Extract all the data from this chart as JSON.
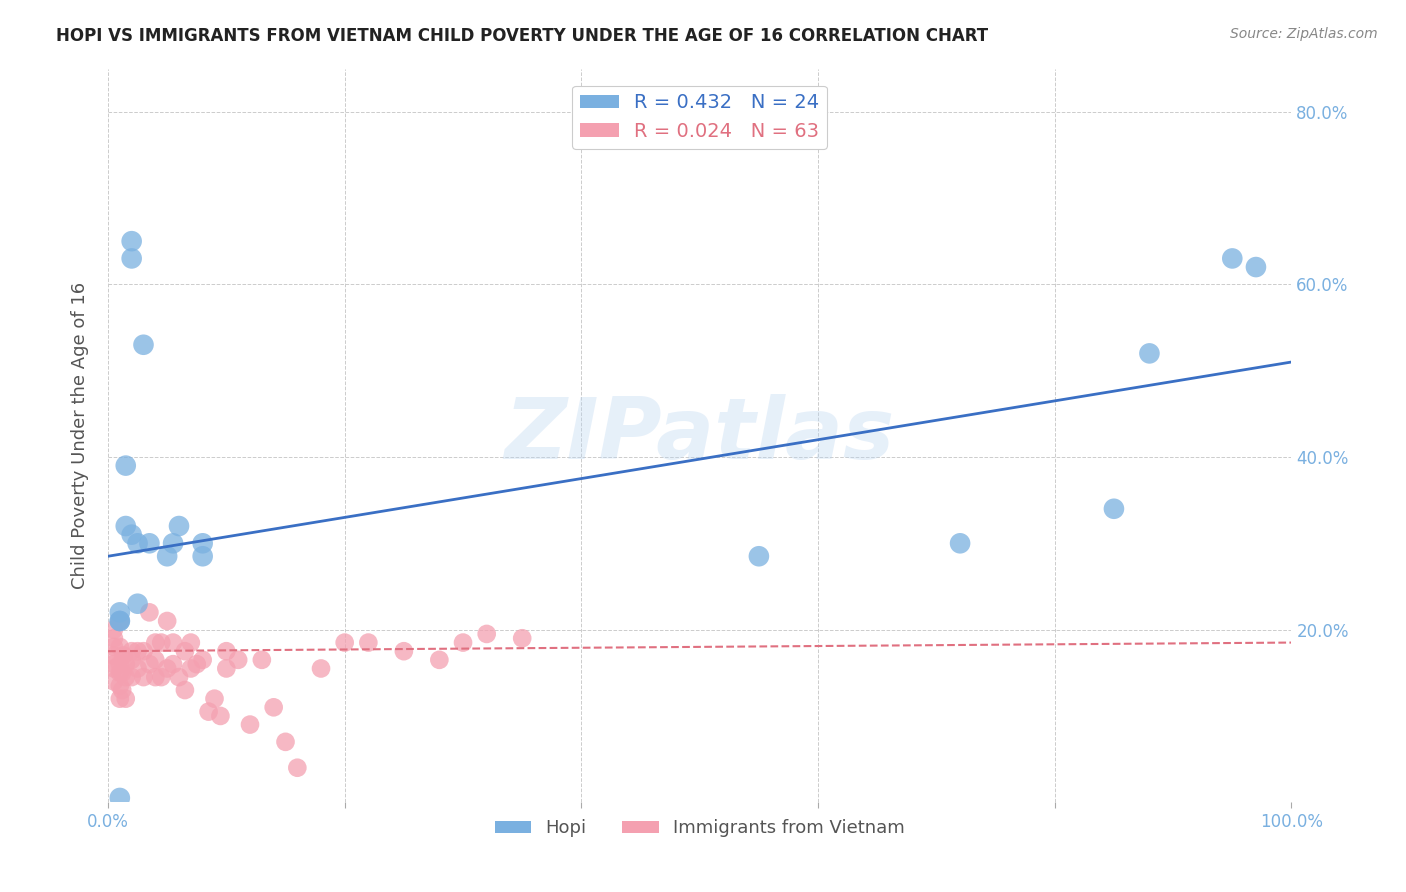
{
  "title": "HOPI VS IMMIGRANTS FROM VIETNAM CHILD POVERTY UNDER THE AGE OF 16 CORRELATION CHART",
  "source": "Source: ZipAtlas.com",
  "ylabel": "Child Poverty Under the Age of 16",
  "xlabel": "",
  "xlim": [
    0.0,
    1.0
  ],
  "ylim": [
    0.0,
    0.85
  ],
  "x_ticks": [
    0.0,
    0.2,
    0.4,
    0.6,
    0.8,
    1.0
  ],
  "x_tick_labels": [
    "0.0%",
    "",
    "",
    "",
    "",
    "100.0%"
  ],
  "y_ticks": [
    0.0,
    0.2,
    0.4,
    0.6,
    0.8
  ],
  "y_tick_labels": [
    "",
    "20.0%",
    "40.0%",
    "60.0%",
    "80.0%"
  ],
  "hopi_color": "#7ab0e0",
  "vietnam_color": "#f4a0b0",
  "hopi_line_color": "#3a6fc4",
  "vietnam_line_color": "#e07080",
  "legend_hopi_R": "R = 0.432",
  "legend_hopi_N": "N = 24",
  "legend_vietnam_R": "R = 0.024",
  "legend_vietnam_N": "N = 63",
  "watermark": "ZIPatlas",
  "hopi_points_x": [
    0.01,
    0.01,
    0.01,
    0.01,
    0.015,
    0.015,
    0.02,
    0.02,
    0.02,
    0.025,
    0.025,
    0.03,
    0.035,
    0.05,
    0.055,
    0.06,
    0.08,
    0.08,
    0.55,
    0.72,
    0.85,
    0.88,
    0.95,
    0.97
  ],
  "hopi_points_y": [
    0.005,
    0.21,
    0.21,
    0.22,
    0.39,
    0.32,
    0.31,
    0.63,
    0.65,
    0.23,
    0.3,
    0.53,
    0.3,
    0.285,
    0.3,
    0.32,
    0.285,
    0.3,
    0.285,
    0.3,
    0.34,
    0.52,
    0.63,
    0.62
  ],
  "vietnam_points_x": [
    0.005,
    0.005,
    0.005,
    0.005,
    0.005,
    0.005,
    0.005,
    0.01,
    0.01,
    0.01,
    0.01,
    0.01,
    0.01,
    0.012,
    0.012,
    0.013,
    0.015,
    0.015,
    0.015,
    0.02,
    0.02,
    0.02,
    0.025,
    0.025,
    0.03,
    0.03,
    0.035,
    0.035,
    0.04,
    0.04,
    0.04,
    0.045,
    0.045,
    0.05,
    0.05,
    0.055,
    0.055,
    0.06,
    0.065,
    0.065,
    0.07,
    0.07,
    0.075,
    0.08,
    0.085,
    0.09,
    0.095,
    0.1,
    0.1,
    0.11,
    0.12,
    0.13,
    0.14,
    0.15,
    0.16,
    0.18,
    0.2,
    0.22,
    0.25,
    0.28,
    0.3,
    0.32,
    0.35
  ],
  "vietnam_points_y": [
    0.14,
    0.155,
    0.16,
    0.17,
    0.18,
    0.19,
    0.2,
    0.12,
    0.135,
    0.15,
    0.16,
    0.18,
    0.21,
    0.13,
    0.15,
    0.17,
    0.12,
    0.145,
    0.16,
    0.145,
    0.165,
    0.175,
    0.155,
    0.175,
    0.145,
    0.175,
    0.16,
    0.22,
    0.145,
    0.165,
    0.185,
    0.145,
    0.185,
    0.155,
    0.21,
    0.16,
    0.185,
    0.145,
    0.13,
    0.175,
    0.155,
    0.185,
    0.16,
    0.165,
    0.105,
    0.12,
    0.1,
    0.155,
    0.175,
    0.165,
    0.09,
    0.165,
    0.11,
    0.07,
    0.04,
    0.155,
    0.185,
    0.185,
    0.175,
    0.165,
    0.185,
    0.195,
    0.19
  ],
  "hopi_trend_x": [
    0.0,
    1.0
  ],
  "hopi_trend_y": [
    0.285,
    0.51
  ],
  "vietnam_trend_x": [
    0.0,
    1.0
  ],
  "vietnam_trend_y": [
    0.175,
    0.185
  ],
  "background_color": "#ffffff",
  "tick_color": "#7ab0e0",
  "grid_color": "#cccccc"
}
